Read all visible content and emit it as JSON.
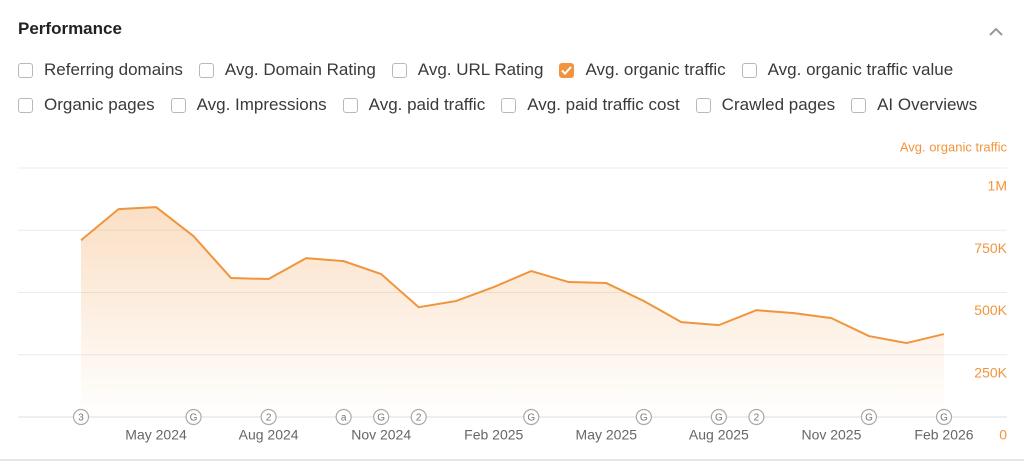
{
  "header": {
    "title": "Performance"
  },
  "checkboxes": [
    [
      {
        "label": "Referring domains",
        "checked": false
      },
      {
        "label": "Avg. Domain Rating",
        "checked": false
      },
      {
        "label": "Avg. URL Rating",
        "checked": false
      },
      {
        "label": "Avg. organic traffic",
        "checked": true
      },
      {
        "label": "Avg. organic traffic value",
        "checked": false
      }
    ],
    [
      {
        "label": "Organic pages",
        "checked": false
      },
      {
        "label": "Avg. Impressions",
        "checked": false
      },
      {
        "label": "Avg. paid traffic",
        "checked": false
      },
      {
        "label": "Avg. paid traffic cost",
        "checked": false
      },
      {
        "label": "Crawled pages",
        "checked": false
      },
      {
        "label": "AI Overviews",
        "checked": false
      }
    ]
  ],
  "chart_data": {
    "type": "area",
    "y_axis_label": "Avg. organic traffic",
    "categories": [
      null,
      null,
      "May 2024",
      null,
      null,
      "Aug 2024",
      null,
      null,
      "Nov 2024",
      null,
      null,
      "Feb 2025",
      null,
      null,
      "May 2025",
      null,
      null,
      "Aug 2025",
      null,
      null,
      "Nov 2025",
      null,
      null,
      "Feb 2026"
    ],
    "series": [
      {
        "name": "Avg. organic traffic",
        "color": "#f0953d",
        "values": [
          710000,
          835000,
          843000,
          726000,
          558000,
          554000,
          638000,
          626000,
          574000,
          441000,
          466000,
          522000,
          586000,
          542000,
          538000,
          466000,
          381000,
          369000,
          429000,
          417000,
          397000,
          325000,
          297000,
          333000
        ]
      }
    ],
    "annotations": [
      "3",
      null,
      null,
      "G",
      null,
      "2",
      null,
      "a",
      "G",
      "2",
      null,
      null,
      "G",
      null,
      null,
      "G",
      null,
      "G",
      "2",
      null,
      null,
      "G",
      null,
      "G"
    ],
    "ylim": [
      0,
      1000000
    ],
    "yticks": [
      0,
      {
        "value": 250000,
        "label": "250K"
      },
      {
        "value": 500000,
        "label": "500K"
      },
      {
        "value": 750000,
        "label": "750K"
      },
      {
        "value": 1000000,
        "label": "1M"
      }
    ],
    "grid": true
  }
}
